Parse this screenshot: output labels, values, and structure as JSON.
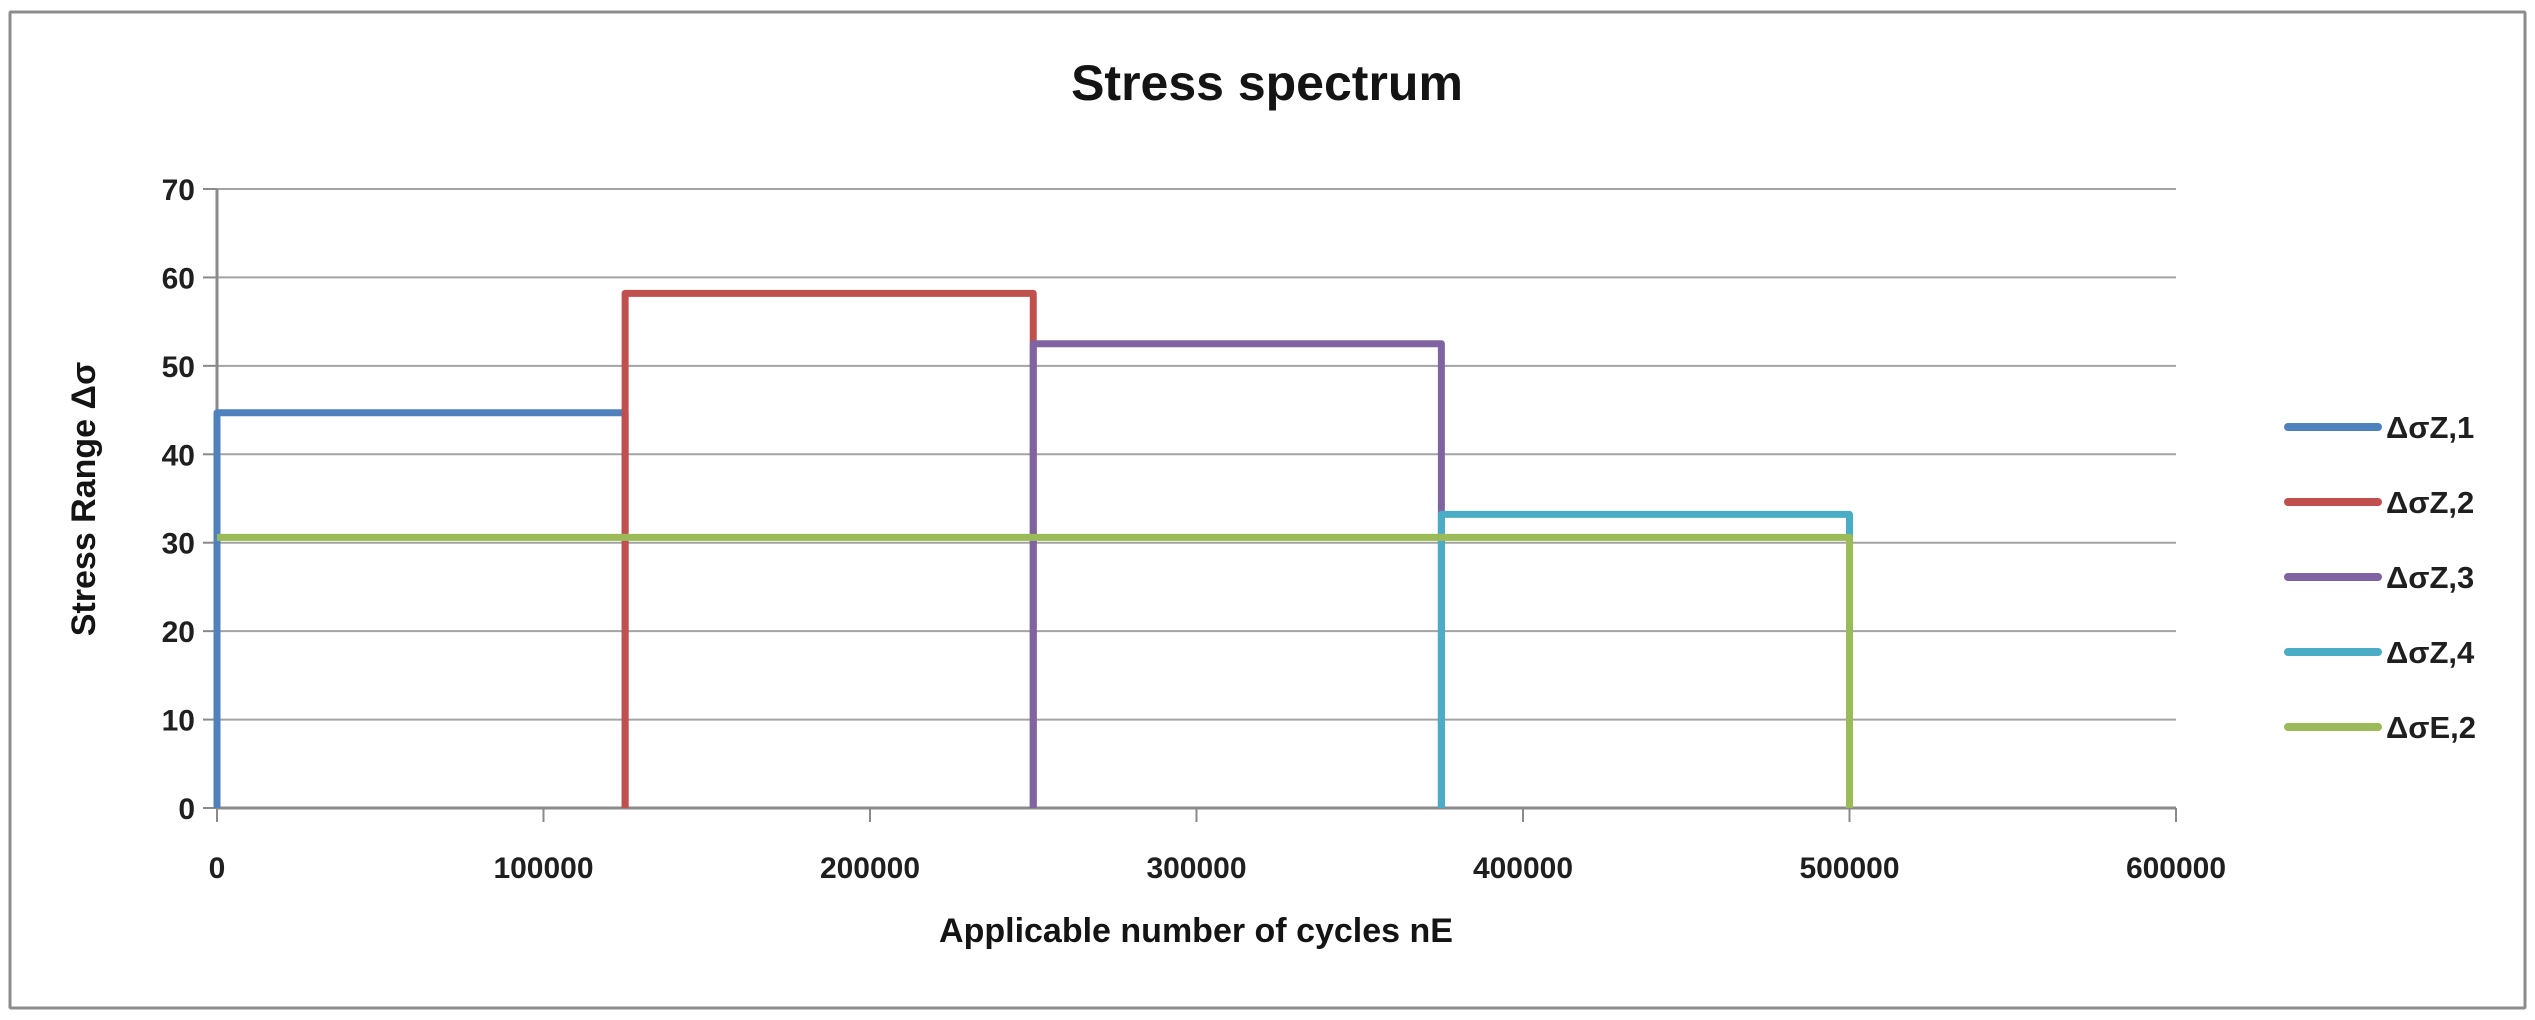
{
  "chart": {
    "title": "Stress spectrum",
    "x_axis_title": "Applicable number of cycles  nE",
    "y_axis_title": "Stress Range Δσ"
  },
  "chart_data": {
    "type": "line",
    "title": "Stress spectrum",
    "xlabel": "Applicable number of cycles  nE",
    "ylabel": "Stress Range Δσ",
    "xlim": [
      0,
      600000
    ],
    "ylim": [
      0,
      70
    ],
    "x_ticks": [
      0,
      100000,
      200000,
      300000,
      400000,
      500000,
      600000
    ],
    "y_ticks": [
      0,
      10,
      20,
      30,
      40,
      50,
      60,
      70
    ],
    "grid": "horizontal-only",
    "legend_position": "right",
    "background": "#FFFFFF",
    "gridline_color": "#A3A3A3",
    "series": [
      {
        "name": "ΔσZ,1",
        "color": "#4F81BD",
        "points": [
          [
            0,
            0
          ],
          [
            0,
            44.7
          ],
          [
            125000,
            44.7
          ],
          [
            125000,
            0
          ]
        ]
      },
      {
        "name": "ΔσZ,2",
        "color": "#C0504D",
        "points": [
          [
            125000,
            0
          ],
          [
            125000,
            58.2
          ],
          [
            250000,
            58.2
          ],
          [
            250000,
            0
          ]
        ]
      },
      {
        "name": "ΔσZ,3",
        "color": "#8064A2",
        "points": [
          [
            250000,
            0
          ],
          [
            250000,
            52.5
          ],
          [
            375000,
            52.5
          ],
          [
            375000,
            0
          ]
        ]
      },
      {
        "name": "ΔσZ,4",
        "color": "#4BACC6",
        "points": [
          [
            375000,
            0
          ],
          [
            375000,
            33.2
          ],
          [
            500000,
            33.2
          ],
          [
            500000,
            0
          ]
        ]
      },
      {
        "name": "ΔσE,2",
        "color": "#9BBB59",
        "points": [
          [
            0,
            30.6
          ],
          [
            500000,
            30.6
          ],
          [
            500000,
            0
          ]
        ]
      }
    ]
  }
}
